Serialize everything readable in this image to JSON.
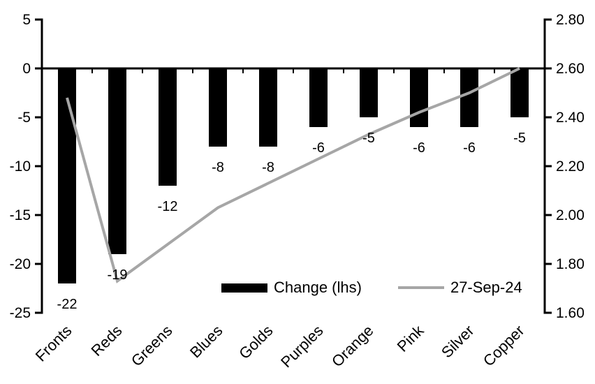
{
  "chart_data": {
    "type": "bar+line",
    "title": "",
    "categories": [
      "Fronts",
      "Reds",
      "Greens",
      "Blues",
      "Golds",
      "Purples",
      "Orange",
      "Pink",
      "Silver",
      "Copper"
    ],
    "series": [
      {
        "name": "Change (lhs)",
        "type": "bar",
        "axis": "left",
        "color": "#000000",
        "values": [
          -22,
          -19,
          -12,
          -8,
          -8,
          -6,
          -5,
          -6,
          -6,
          -5
        ]
      },
      {
        "name": "27-Sep-24",
        "type": "line",
        "axis": "right",
        "color": "#a6a6a6",
        "values": [
          2.48,
          1.73,
          1.88,
          2.03,
          2.13,
          2.23,
          2.33,
          2.42,
          2.5,
          2.6
        ]
      }
    ],
    "bar_labels": [
      "-22",
      "-19",
      "-12",
      "-8",
      "-8",
      "-6",
      "-5",
      "-6",
      "-6",
      "-5"
    ],
    "left_axis": {
      "min": -25,
      "max": 5,
      "step": 5,
      "tick_labels": [
        "5",
        "0",
        "-5",
        "-10",
        "-15",
        "-20",
        "-25"
      ]
    },
    "right_axis": {
      "min": 1.6,
      "max": 2.8,
      "step": 0.2,
      "tick_labels": [
        "2.80",
        "2.60",
        "2.40",
        "2.20",
        "2.00",
        "1.80",
        "1.60"
      ]
    },
    "legend": {
      "position": "bottom-center-inside",
      "items": [
        {
          "label": "Change (lhs)",
          "swatch": "bar",
          "color": "#000000"
        },
        {
          "label": "27-Sep-24",
          "swatch": "line",
          "color": "#a6a6a6"
        }
      ]
    },
    "grid": false,
    "background": "#ffffff",
    "axis_color": "#000000"
  }
}
